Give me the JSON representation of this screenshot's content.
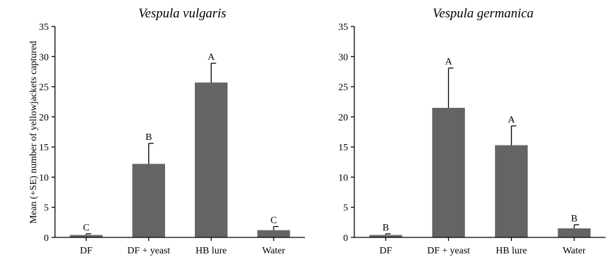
{
  "figure": {
    "ylabel": "Mean (+SE) number of yellowjackets captured"
  },
  "chart_data": [
    {
      "type": "bar",
      "title": "Vespula vulgaris",
      "categories": [
        "DF",
        "DF + yeast",
        "HB lure",
        "Water"
      ],
      "values": [
        0.4,
        12.2,
        25.7,
        1.2
      ],
      "errors": [
        0.2,
        3.4,
        3.2,
        0.6
      ],
      "letters": [
        "C",
        "B",
        "A",
        "C"
      ],
      "ylim": [
        0,
        35
      ],
      "yticks": [
        0,
        5,
        10,
        15,
        20,
        25,
        30,
        35
      ],
      "ytick_labels": [
        "0",
        "5",
        "10",
        "15",
        "20",
        "25",
        "30",
        "35"
      ],
      "ylabel": "Mean (+SE) number of yellowjackets captured",
      "xlabel": "",
      "bar_color": "#646464",
      "grid": false
    },
    {
      "type": "bar",
      "title": "Vespula germanica",
      "categories": [
        "DF",
        "DF + yeast",
        "HB lure",
        "Water"
      ],
      "values": [
        0.4,
        21.5,
        15.3,
        1.5
      ],
      "errors": [
        0.2,
        6.6,
        3.2,
        0.6
      ],
      "letters": [
        "B",
        "A",
        "A",
        "B"
      ],
      "ylim": [
        0,
        35
      ],
      "yticks": [
        0,
        5,
        10,
        15,
        20,
        25,
        30,
        35
      ],
      "ytick_labels": [
        "0",
        "5",
        "10",
        "15",
        "20",
        "25",
        "30",
        "35"
      ],
      "ylabel": "",
      "xlabel": "",
      "bar_color": "#646464",
      "grid": false
    }
  ]
}
